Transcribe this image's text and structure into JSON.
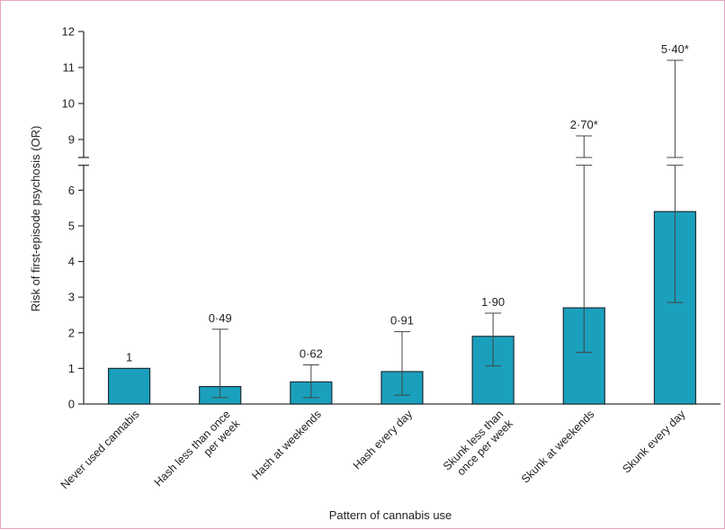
{
  "chart_data": {
    "type": "bar",
    "title": "",
    "xlabel": "Pattern of cannabis use",
    "ylabel": "Risk of first-episode psychosis (OR)",
    "axis_break": [
      6.7,
      8.5
    ],
    "ylim": [
      0,
      12
    ],
    "yticks": [
      "0",
      "1",
      "2",
      "3",
      "4",
      "5",
      "6",
      "9",
      "10",
      "11",
      "12"
    ],
    "categories": [
      [
        "Never used cannabis"
      ],
      [
        "Hash less than once",
        "per week"
      ],
      [
        "Hash at weekends"
      ],
      [
        "Hash every day"
      ],
      [
        "Skunk less than",
        "once per week"
      ],
      [
        "Skunk at weekends"
      ],
      [
        "Skunk every day"
      ]
    ],
    "values": [
      1,
      0.49,
      0.62,
      0.91,
      1.9,
      2.7,
      5.4
    ],
    "ci_low": [
      null,
      0.18,
      0.18,
      0.25,
      1.07,
      1.45,
      2.85
    ],
    "ci_high": [
      null,
      2.1,
      1.1,
      2.03,
      2.55,
      9.1,
      11.2
    ],
    "value_labels": [
      "1",
      "0·49",
      "0·62",
      "0·91",
      "1·90",
      "2·70*",
      "5·40*"
    ],
    "bar_color": "#1aa0bd",
    "grid": false,
    "legend": "none"
  }
}
